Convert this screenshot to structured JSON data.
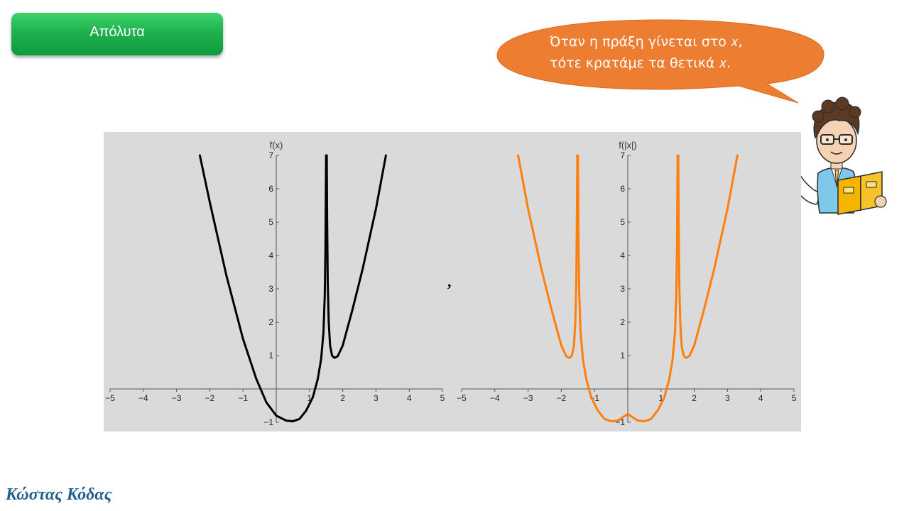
{
  "header": {
    "title": "Απόλυτα"
  },
  "bubble": {
    "line1": "Όταν η πράξη γίνεται στο 𝑥,",
    "line2": "τότε κρατάμε τα θετικά 𝑥.",
    "color": "#ed7d31"
  },
  "separator": ",",
  "author": "Κώστας Κόδας",
  "chart_data": [
    {
      "type": "line",
      "ylabel": "f(x)",
      "xlabel": "",
      "xlim": [
        -5,
        5
      ],
      "ylim": [
        -1,
        7
      ],
      "x_ticks": [
        -5,
        -4,
        -3,
        -2,
        -1,
        1,
        2,
        3,
        4,
        5
      ],
      "y_ticks": [
        -1,
        1,
        2,
        3,
        4,
        5,
        6,
        7
      ],
      "color": "#000000",
      "series": [
        {
          "points": [
            [
              -2.3,
              7
            ],
            [
              -2,
              5.6
            ],
            [
              -1.5,
              3.4
            ],
            [
              -1,
              1.5
            ],
            [
              -0.6,
              0.3
            ],
            [
              -0.3,
              -0.4
            ],
            [
              0,
              -0.8
            ],
            [
              0.3,
              -0.95
            ],
            [
              0.5,
              -0.97
            ],
            [
              0.7,
              -0.9
            ],
            [
              0.9,
              -0.65
            ],
            [
              1.1,
              -0.25
            ],
            [
              1.25,
              0.3
            ],
            [
              1.35,
              0.9
            ],
            [
              1.42,
              1.7
            ],
            [
              1.46,
              2.8
            ],
            [
              1.48,
              4.2
            ],
            [
              1.49,
              5.5
            ],
            [
              1.5,
              7
            ]
          ],
          "fill": false
        },
        {
          "points": [
            [
              1.52,
              7
            ],
            [
              1.53,
              5.2
            ],
            [
              1.55,
              3.2
            ],
            [
              1.58,
              2.0
            ],
            [
              1.62,
              1.3
            ],
            [
              1.68,
              1.0
            ],
            [
              1.75,
              0.93
            ],
            [
              1.85,
              0.98
            ],
            [
              2.0,
              1.3
            ],
            [
              2.3,
              2.4
            ],
            [
              2.6,
              3.6
            ],
            [
              3.0,
              5.4
            ],
            [
              3.3,
              7
            ]
          ]
        }
      ]
    },
    {
      "type": "line",
      "ylabel": "f(|x|)",
      "xlabel": "",
      "xlim": [
        -5,
        5
      ],
      "ylim": [
        -1,
        7
      ],
      "x_ticks": [
        -5,
        -4,
        -3,
        -2,
        -1,
        1,
        2,
        3,
        4,
        5
      ],
      "y_ticks": [
        -1,
        1,
        2,
        3,
        4,
        5,
        6,
        7
      ],
      "color": "#ff7f0e",
      "series": [
        {
          "points": [
            [
              -3.3,
              7
            ],
            [
              -3.0,
              5.4
            ],
            [
              -2.6,
              3.6
            ],
            [
              -2.3,
              2.4
            ],
            [
              -2.0,
              1.3
            ],
            [
              -1.85,
              0.98
            ],
            [
              -1.75,
              0.93
            ],
            [
              -1.68,
              1.0
            ],
            [
              -1.62,
              1.3
            ],
            [
              -1.58,
              2.0
            ],
            [
              -1.55,
              3.2
            ],
            [
              -1.53,
              5.2
            ],
            [
              -1.52,
              7
            ]
          ]
        },
        {
          "points": [
            [
              -1.5,
              7
            ],
            [
              -1.49,
              5.5
            ],
            [
              -1.48,
              4.2
            ],
            [
              -1.46,
              2.8
            ],
            [
              -1.42,
              1.7
            ],
            [
              -1.35,
              0.9
            ],
            [
              -1.25,
              0.3
            ],
            [
              -1.1,
              -0.25
            ],
            [
              -0.9,
              -0.65
            ],
            [
              -0.7,
              -0.9
            ],
            [
              -0.5,
              -0.97
            ],
            [
              -0.3,
              -0.95
            ],
            [
              0,
              -0.75
            ],
            [
              0.3,
              -0.95
            ],
            [
              0.5,
              -0.97
            ],
            [
              0.7,
              -0.9
            ],
            [
              0.9,
              -0.65
            ],
            [
              1.1,
              -0.25
            ],
            [
              1.25,
              0.3
            ],
            [
              1.35,
              0.9
            ],
            [
              1.42,
              1.7
            ],
            [
              1.46,
              2.8
            ],
            [
              1.48,
              4.2
            ],
            [
              1.49,
              5.5
            ],
            [
              1.5,
              7
            ]
          ]
        },
        {
          "points": [
            [
              1.52,
              7
            ],
            [
              1.53,
              5.2
            ],
            [
              1.55,
              3.2
            ],
            [
              1.58,
              2.0
            ],
            [
              1.62,
              1.3
            ],
            [
              1.68,
              1.0
            ],
            [
              1.75,
              0.93
            ],
            [
              1.85,
              0.98
            ],
            [
              2.0,
              1.3
            ],
            [
              2.3,
              2.4
            ],
            [
              2.6,
              3.6
            ],
            [
              3.0,
              5.4
            ],
            [
              3.3,
              7
            ]
          ]
        }
      ]
    }
  ]
}
